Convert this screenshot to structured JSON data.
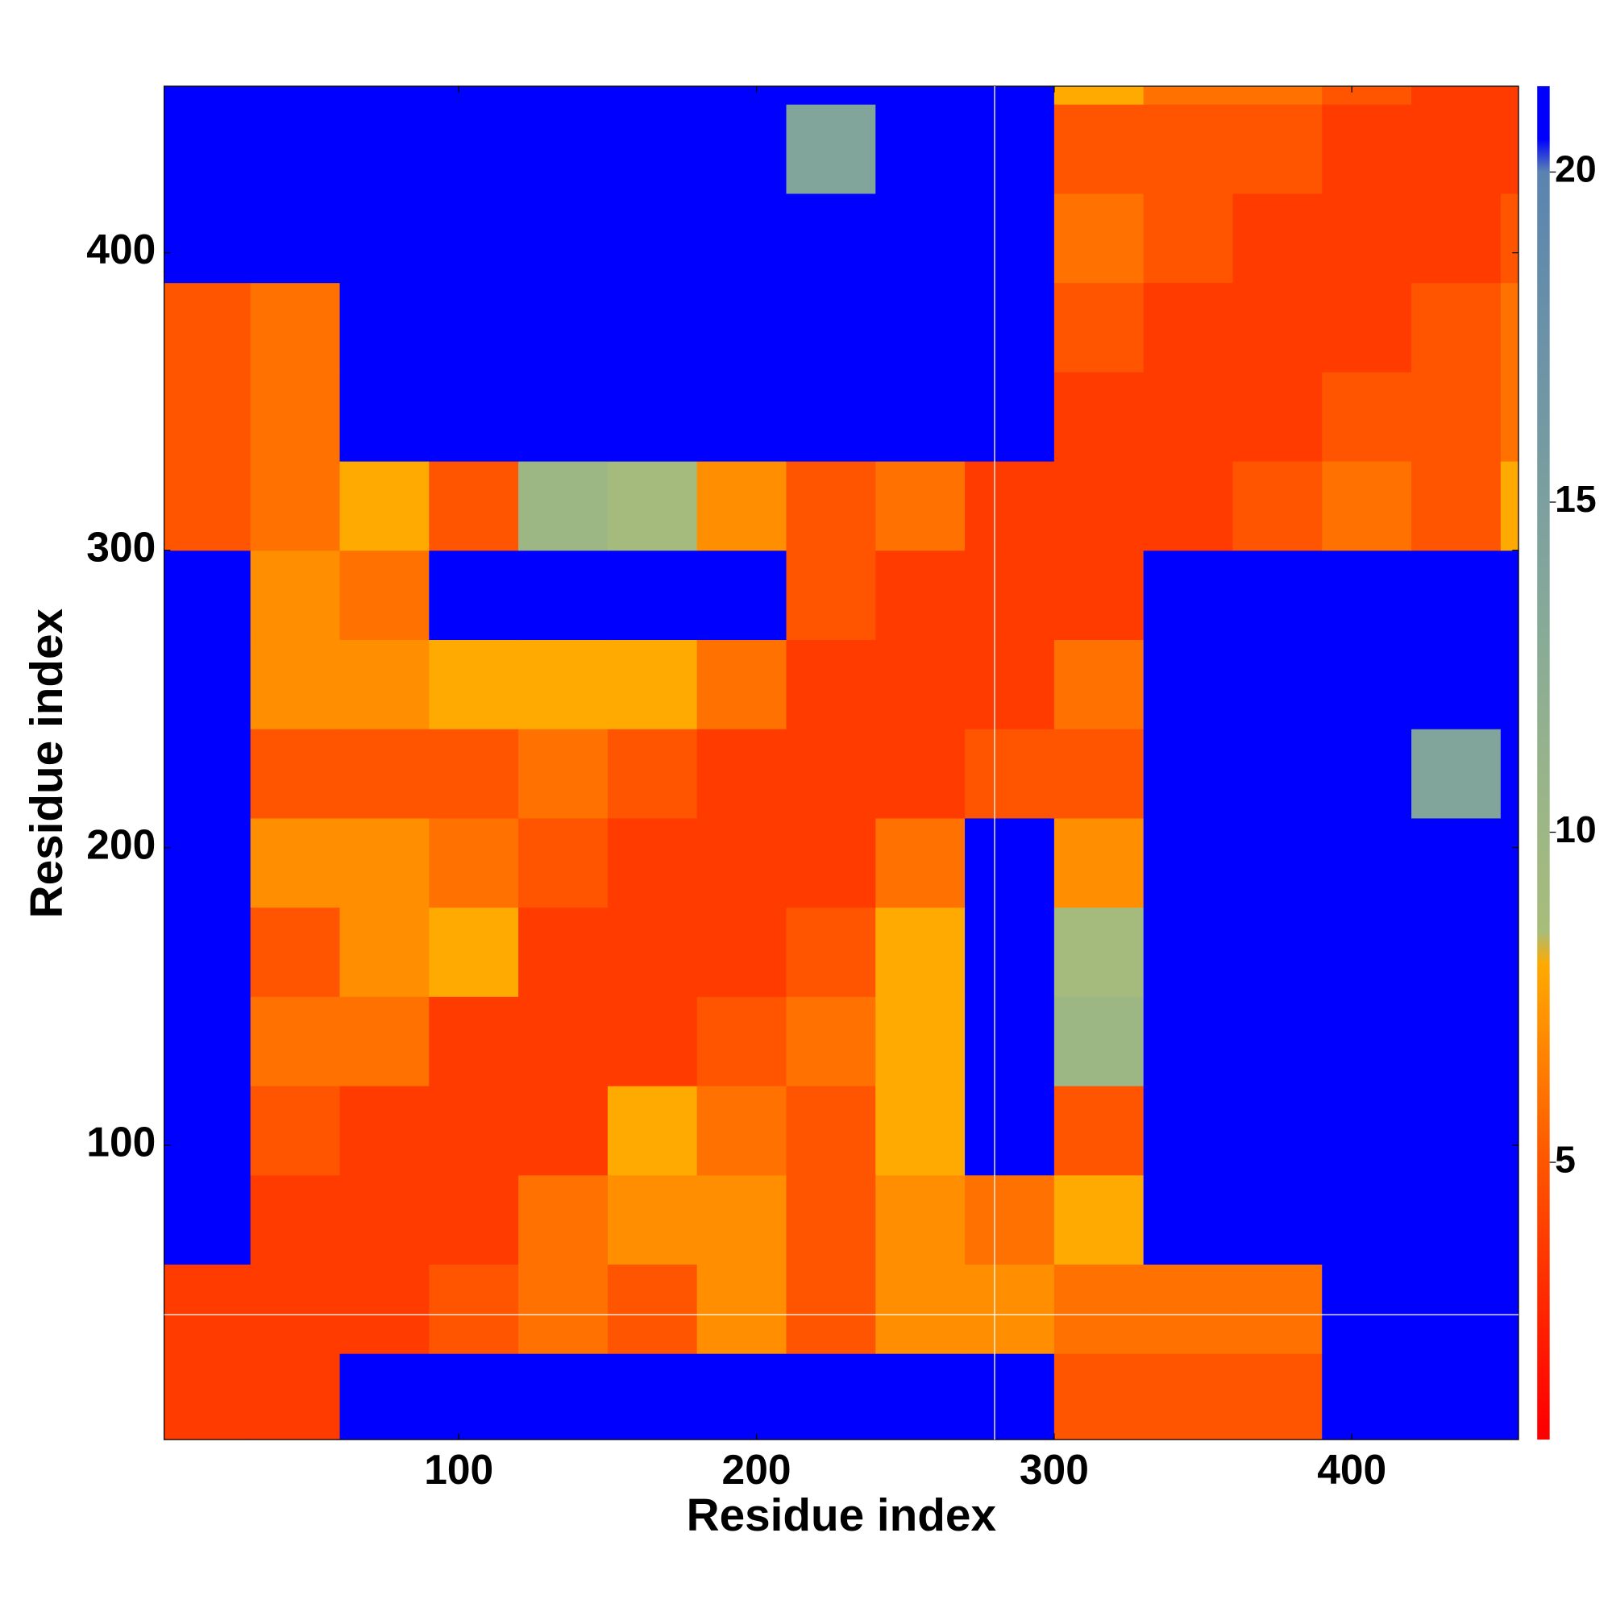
{
  "chart_data": {
    "type": "heatmap",
    "x_label": "Residue index",
    "y_label": "Residue index",
    "xlim": [
      1,
      456
    ],
    "ylim": [
      1,
      456
    ],
    "xticks": [
      100,
      200,
      300,
      400
    ],
    "yticks": [
      100,
      200,
      300,
      400
    ],
    "x_bins": [
      0,
      30,
      60,
      90,
      120,
      150,
      180,
      210,
      240,
      270,
      300,
      330,
      360,
      390,
      420,
      450,
      456
    ],
    "y_bins": [
      0,
      30,
      60,
      90,
      120,
      150,
      180,
      210,
      240,
      270,
      300,
      330,
      360,
      390,
      420,
      450,
      456
    ],
    "z": [
      [
        3.8,
        3.8,
        21,
        21,
        21,
        21,
        21,
        21,
        21,
        21,
        5,
        5,
        5,
        21,
        21,
        21
      ],
      [
        3.8,
        3.8,
        3.8,
        5,
        6,
        5,
        7,
        5,
        7,
        7,
        6,
        6,
        6,
        21,
        21,
        21
      ],
      [
        21,
        3.8,
        3.8,
        3.8,
        6,
        7,
        7,
        5,
        7,
        6,
        8,
        21,
        21,
        21,
        21,
        21
      ],
      [
        21,
        5,
        3.8,
        3.8,
        3.8,
        8,
        6,
        5,
        8,
        21,
        5,
        21,
        21,
        21,
        21,
        21
      ],
      [
        21,
        6,
        6,
        3.8,
        3.8,
        3.8,
        5,
        6,
        8,
        21,
        10,
        21,
        21,
        21,
        21,
        21
      ],
      [
        21,
        5,
        7,
        8,
        3.8,
        3.8,
        3.8,
        5,
        8,
        21,
        9,
        21,
        21,
        21,
        21,
        21
      ],
      [
        21,
        7,
        7,
        6,
        5,
        3.8,
        3.8,
        3.8,
        6,
        21,
        7,
        21,
        21,
        21,
        21,
        21
      ],
      [
        21,
        5,
        5,
        5,
        6,
        5,
        3.8,
        3.8,
        3.8,
        5,
        5,
        21,
        21,
        21,
        14,
        21
      ],
      [
        21,
        7,
        7,
        8,
        8,
        8,
        6,
        3.8,
        3.8,
        3.8,
        6,
        21,
        21,
        21,
        21,
        21
      ],
      [
        21,
        7,
        6,
        21,
        21,
        21,
        21,
        5,
        3.8,
        3.8,
        3.8,
        21,
        21,
        21,
        21,
        21
      ],
      [
        5,
        6,
        8,
        5,
        10,
        9,
        7,
        5,
        6,
        3.8,
        3.8,
        3.8,
        5,
        6,
        5,
        8
      ],
      [
        5,
        6,
        21,
        21,
        21,
        21,
        21,
        21,
        21,
        21,
        3.8,
        3.8,
        3.8,
        5,
        5,
        6
      ],
      [
        5,
        6,
        21,
        21,
        21,
        21,
        21,
        21,
        21,
        21,
        5,
        3.8,
        3.8,
        3.8,
        5,
        6
      ],
      [
        21,
        21,
        21,
        21,
        21,
        21,
        21,
        21,
        21,
        21,
        6,
        5,
        3.8,
        3.8,
        3.8,
        5
      ],
      [
        21,
        21,
        21,
        21,
        21,
        21,
        21,
        14,
        21,
        21,
        5,
        5,
        5,
        3.8,
        3.8,
        3.8
      ],
      [
        21,
        21,
        21,
        21,
        21,
        21,
        21,
        21,
        21,
        21,
        8,
        6,
        6,
        5,
        3.8,
        3.8
      ]
    ],
    "clim": [
      0.8,
      21.3
    ],
    "colorbar_ticks": [
      5,
      10,
      15,
      20
    ],
    "colorscale": [
      [
        1,
        "#ff0000"
      ],
      [
        5,
        "#ff5500"
      ],
      [
        8,
        "#ffaa00"
      ],
      [
        8.5,
        "#a8bd7a"
      ],
      [
        13,
        "#88ab98"
      ],
      [
        20,
        "#5a84b0"
      ],
      [
        20.5,
        "#0000ff"
      ]
    ],
    "vlines": [
      280
    ],
    "hlines": [
      43
    ],
    "line_color": "#ffffff"
  }
}
